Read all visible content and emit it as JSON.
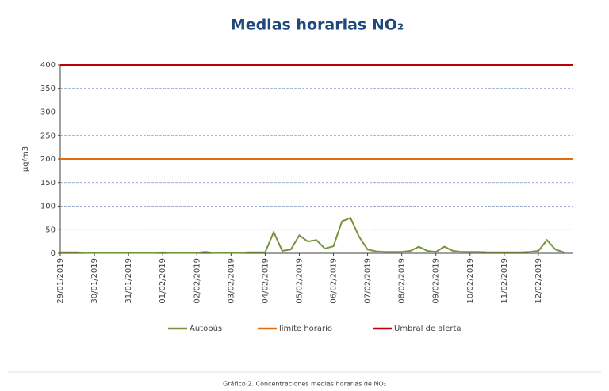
{
  "chart_data": {
    "type": "line",
    "title": "Medias horarias NO₂",
    "ylabel": "µg/m3",
    "caption": "Gráfico 2. Concentraciones medias horarias de NO₂",
    "categories": [
      "29/01/2019",
      null,
      null,
      null,
      "30/01/2019",
      null,
      null,
      null,
      "31/01/2019",
      null,
      null,
      null,
      "01/02/2019",
      null,
      null,
      null,
      "02/02/2019",
      null,
      null,
      null,
      "03/02/2019",
      null,
      null,
      null,
      "04/02/2019",
      null,
      null,
      null,
      "05/02/2019",
      null,
      null,
      null,
      "06/02/2019",
      null,
      null,
      null,
      "07/02/2019",
      null,
      null,
      null,
      "08/02/2019",
      null,
      null,
      null,
      "09/02/2019",
      null,
      null,
      null,
      "10/02/2019",
      null,
      null,
      null,
      "11/02/2019",
      null,
      null,
      null,
      "12/02/2019",
      null,
      null,
      null
    ],
    "series": [
      {
        "name": "Autobús",
        "color": "#77933c",
        "values": [
          2,
          2,
          2,
          1,
          1,
          1,
          1,
          1,
          1,
          1,
          1,
          1,
          2,
          1,
          1,
          1,
          1,
          3,
          1,
          1,
          1,
          1,
          2,
          2,
          2,
          45,
          5,
          8,
          38,
          25,
          28,
          10,
          15,
          68,
          75,
          35,
          8,
          4,
          3,
          3,
          3,
          5,
          14,
          5,
          3,
          14,
          5,
          3,
          3,
          3,
          2,
          2,
          2,
          2,
          2,
          3,
          5,
          28,
          8,
          2
        ]
      }
    ],
    "reference_lines": [
      {
        "name": "límite horario",
        "value": 200,
        "color": "#e46c0a"
      },
      {
        "name": "Umbral de alerta",
        "value": 400,
        "color": "#c00000"
      }
    ],
    "ylim": [
      0,
      400
    ],
    "yticks": [
      0,
      50,
      100,
      150,
      200,
      250,
      300,
      350,
      400
    ],
    "grid": true
  }
}
